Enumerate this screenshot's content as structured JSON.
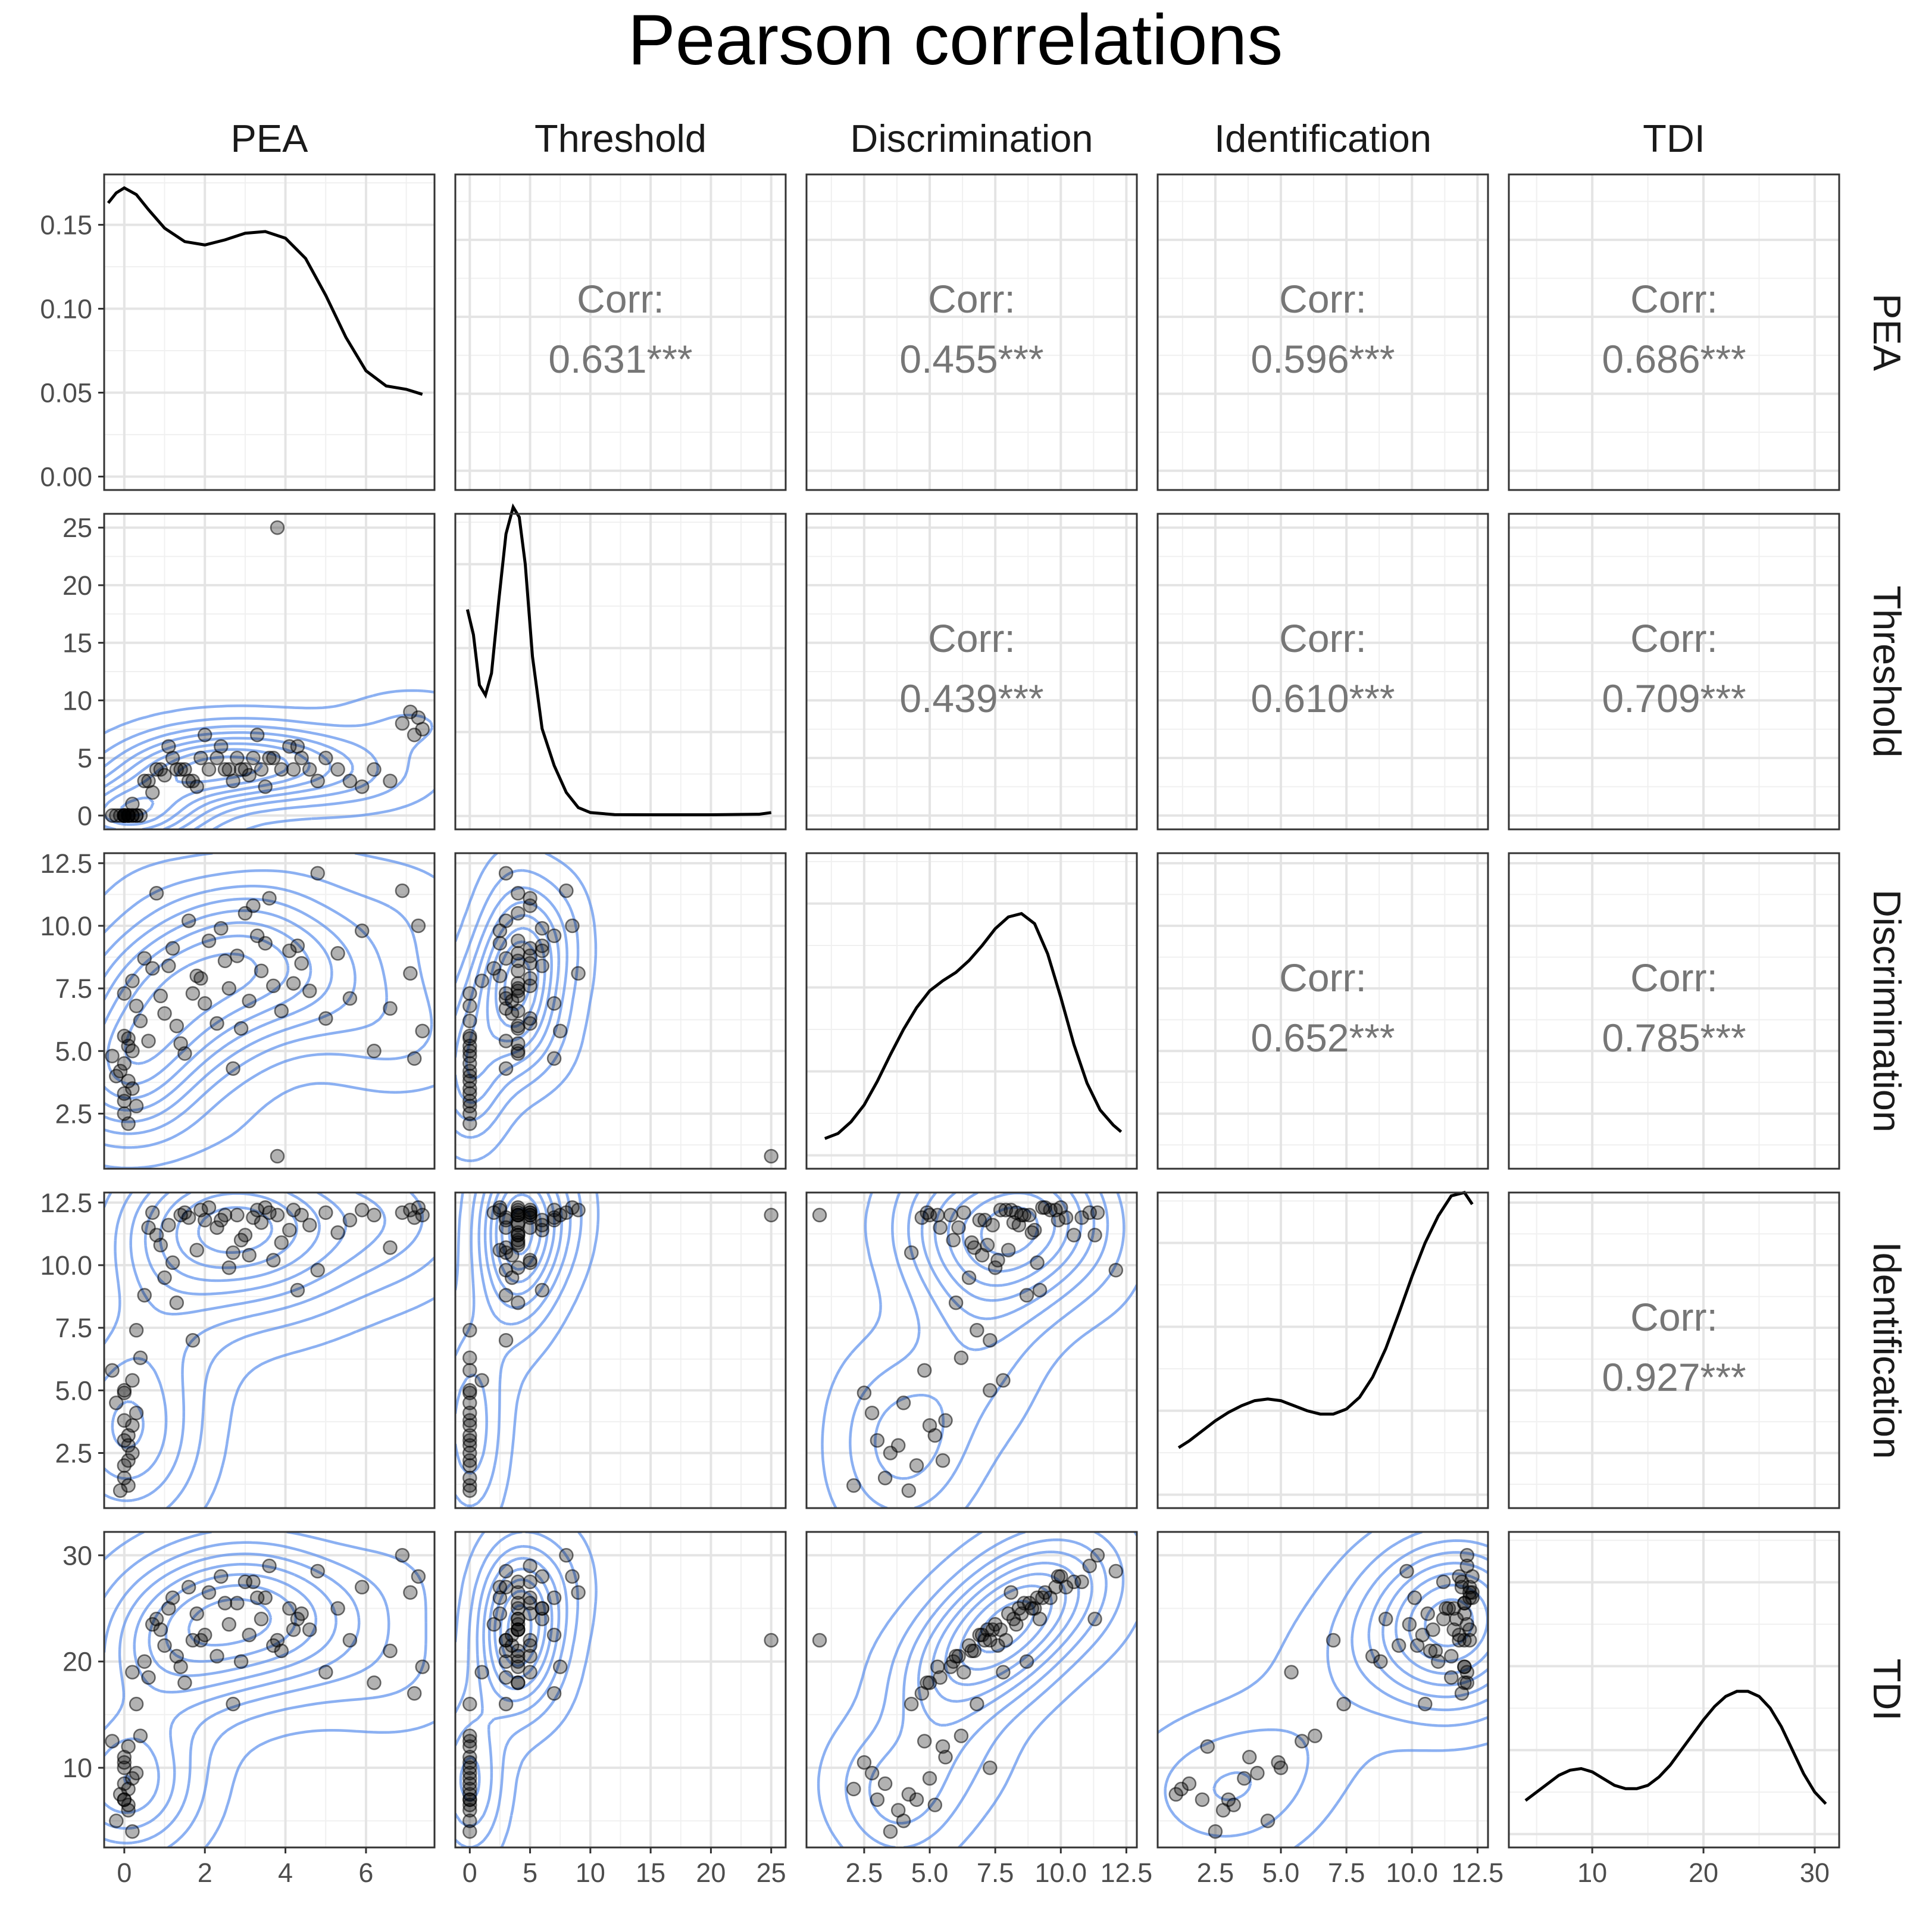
{
  "chart_data": {
    "type": "scatter-matrix",
    "title": "Pearson correlations",
    "variables": [
      "PEA",
      "Threshold",
      "Discrimination",
      "Identification",
      "TDI"
    ],
    "axes": {
      "PEA": {
        "range": [
          -0.5,
          7.7
        ],
        "ticks": [
          0,
          2,
          4,
          6
        ],
        "tick_labels": [
          "0",
          "2",
          "4",
          "6"
        ]
      },
      "Threshold": {
        "range": [
          -1.2,
          26.2
        ],
        "ticks": [
          0,
          5,
          10,
          15,
          20,
          25
        ],
        "tick_labels": [
          "0",
          "5",
          "10",
          "15",
          "20",
          "25"
        ]
      },
      "Discrimination": {
        "range": [
          0.3,
          12.9
        ],
        "ticks": [
          2.5,
          5,
          7.5,
          10,
          12.5
        ],
        "tick_labels": [
          "2.5",
          "5.0",
          "7.5",
          "10.0",
          "12.5"
        ]
      },
      "Identification": {
        "range": [
          0.3,
          12.9
        ],
        "ticks": [
          2.5,
          5,
          7.5,
          10,
          12.5
        ],
        "tick_labels": [
          "2.5",
          "5.0",
          "7.5",
          "10.0",
          "12.5"
        ]
      },
      "TDI": {
        "range": [
          2.5,
          32.2
        ],
        "ticks": [
          10,
          20,
          30
        ],
        "tick_labels": [
          "10",
          "20",
          "30"
        ]
      }
    },
    "diag_y_axis": {
      "range": [
        -0.008,
        0.18
      ],
      "ticks": [
        0,
        0.05,
        0.1,
        0.15
      ],
      "tick_labels": [
        "0.00",
        "0.05",
        "0.10",
        "0.15"
      ]
    },
    "correlations": [
      {
        "row": 0,
        "col": 1,
        "label": "Corr:",
        "value": "0.631***"
      },
      {
        "row": 0,
        "col": 2,
        "label": "Corr:",
        "value": "0.455***"
      },
      {
        "row": 0,
        "col": 3,
        "label": "Corr:",
        "value": "0.596***"
      },
      {
        "row": 0,
        "col": 4,
        "label": "Corr:",
        "value": "0.686***"
      },
      {
        "row": 1,
        "col": 2,
        "label": "Corr:",
        "value": "0.439***"
      },
      {
        "row": 1,
        "col": 3,
        "label": "Corr:",
        "value": "0.610***"
      },
      {
        "row": 1,
        "col": 4,
        "label": "Corr:",
        "value": "0.709***"
      },
      {
        "row": 2,
        "col": 3,
        "label": "Corr:",
        "value": "0.652***"
      },
      {
        "row": 2,
        "col": 4,
        "label": "Corr:",
        "value": "0.785***"
      },
      {
        "row": 3,
        "col": 4,
        "label": "Corr:",
        "value": "0.927***"
      }
    ],
    "densities": {
      "PEA": [
        [
          -0.4,
          0.163
        ],
        [
          -0.2,
          0.169
        ],
        [
          0,
          0.172
        ],
        [
          0.3,
          0.168
        ],
        [
          0.6,
          0.159
        ],
        [
          1,
          0.148
        ],
        [
          1.5,
          0.14
        ],
        [
          2,
          0.138
        ],
        [
          2.5,
          0.141
        ],
        [
          3,
          0.145
        ],
        [
          3.5,
          0.146
        ],
        [
          4,
          0.142
        ],
        [
          4.5,
          0.13
        ],
        [
          5,
          0.108
        ],
        [
          5.5,
          0.083
        ],
        [
          6,
          0.063
        ],
        [
          6.5,
          0.054
        ],
        [
          7,
          0.052
        ],
        [
          7.4,
          0.049
        ]
      ],
      "Threshold": [
        [
          -0.2,
          0.123
        ],
        [
          0.3,
          0.108
        ],
        [
          0.8,
          0.078
        ],
        [
          1.3,
          0.072
        ],
        [
          1.8,
          0.085
        ],
        [
          2.4,
          0.128
        ],
        [
          3,
          0.168
        ],
        [
          3.6,
          0.184
        ],
        [
          4.1,
          0.178
        ],
        [
          4.6,
          0.15
        ],
        [
          5.2,
          0.095
        ],
        [
          6,
          0.052
        ],
        [
          7,
          0.03
        ],
        [
          8,
          0.014
        ],
        [
          9,
          0.005
        ],
        [
          10,
          0.002
        ],
        [
          12,
          0.0008
        ],
        [
          15,
          0.0007
        ],
        [
          20,
          0.0007
        ],
        [
          24,
          0.001
        ],
        [
          25,
          0.002
        ]
      ],
      "Discrimination": [
        [
          1,
          0.01
        ],
        [
          1.5,
          0.013
        ],
        [
          2,
          0.02
        ],
        [
          2.5,
          0.03
        ],
        [
          3,
          0.044
        ],
        [
          3.5,
          0.06
        ],
        [
          4,
          0.075
        ],
        [
          4.5,
          0.088
        ],
        [
          5,
          0.098
        ],
        [
          5.5,
          0.104
        ],
        [
          6,
          0.109
        ],
        [
          6.5,
          0.116
        ],
        [
          7,
          0.125
        ],
        [
          7.5,
          0.135
        ],
        [
          8,
          0.142
        ],
        [
          8.5,
          0.144
        ],
        [
          9,
          0.138
        ],
        [
          9.5,
          0.12
        ],
        [
          10,
          0.094
        ],
        [
          10.5,
          0.066
        ],
        [
          11,
          0.043
        ],
        [
          11.5,
          0.027
        ],
        [
          12,
          0.018
        ],
        [
          12.3,
          0.014
        ]
      ],
      "Identification": [
        [
          1.1,
          0.028
        ],
        [
          1.5,
          0.032
        ],
        [
          2,
          0.038
        ],
        [
          2.5,
          0.044
        ],
        [
          3,
          0.049
        ],
        [
          3.5,
          0.053
        ],
        [
          4,
          0.056
        ],
        [
          4.5,
          0.057
        ],
        [
          5,
          0.056
        ],
        [
          5.5,
          0.053
        ],
        [
          6,
          0.05
        ],
        [
          6.5,
          0.048
        ],
        [
          7,
          0.048
        ],
        [
          7.5,
          0.051
        ],
        [
          8,
          0.058
        ],
        [
          8.5,
          0.07
        ],
        [
          9,
          0.087
        ],
        [
          9.5,
          0.108
        ],
        [
          10,
          0.13
        ],
        [
          10.5,
          0.15
        ],
        [
          11,
          0.166
        ],
        [
          11.5,
          0.178
        ],
        [
          12,
          0.18
        ],
        [
          12.3,
          0.173
        ]
      ],
      "TDI": [
        [
          4,
          0.02
        ],
        [
          5,
          0.025
        ],
        [
          6,
          0.03
        ],
        [
          7,
          0.035
        ],
        [
          8,
          0.038
        ],
        [
          9,
          0.039
        ],
        [
          10,
          0.037
        ],
        [
          11,
          0.033
        ],
        [
          12,
          0.029
        ],
        [
          13,
          0.027
        ],
        [
          14,
          0.027
        ],
        [
          15,
          0.029
        ],
        [
          16,
          0.034
        ],
        [
          17,
          0.041
        ],
        [
          18,
          0.05
        ],
        [
          19,
          0.059
        ],
        [
          20,
          0.068
        ],
        [
          21,
          0.076
        ],
        [
          22,
          0.082
        ],
        [
          23,
          0.085
        ],
        [
          24,
          0.085
        ],
        [
          25,
          0.082
        ],
        [
          26,
          0.075
        ],
        [
          27,
          0.064
        ],
        [
          28,
          0.05
        ],
        [
          29,
          0.036
        ],
        [
          30,
          0.025
        ],
        [
          31,
          0.018
        ]
      ]
    },
    "points": {
      "PEA": [
        0,
        0,
        0.1,
        0.3,
        0,
        -0.2,
        0.2,
        0,
        0.1,
        -0.3,
        0.4,
        0.1,
        0.2,
        0,
        -0.1,
        0.3,
        0.1,
        0,
        0.2,
        0.5,
        0.8,
        1.0,
        1.2,
        0.9,
        1.1,
        1.4,
        1.6,
        1.9,
        2.1,
        2.3,
        1.8,
        1.5,
        2.4,
        2.6,
        2.8,
        3.0,
        3.1,
        3.3,
        3.4,
        3.6,
        3.8,
        3.9,
        4.1,
        4.2,
        4.4,
        2.7,
        3.2,
        2.9,
        3.5,
        4.6,
        4.8,
        5.0,
        5.3,
        5.6,
        5.9,
        6.2,
        6.6,
        6.9,
        7.1,
        7.2,
        7.3,
        7.4,
        2.0,
        2.5,
        3.7,
        4.3,
        0.6,
        0.7,
        1.3,
        1.7
      ],
      "Threshold": [
        0,
        0,
        0,
        0,
        0,
        0,
        0,
        0,
        0,
        0,
        0,
        0,
        0,
        0,
        0,
        0,
        0,
        0,
        1,
        3,
        4,
        3.5,
        5,
        4,
        6,
        4,
        3,
        5,
        4,
        5,
        2.5,
        4,
        6,
        4,
        5,
        4,
        3.5,
        7,
        4,
        5,
        25,
        4,
        6,
        4,
        5,
        3,
        5,
        4,
        2.5,
        4,
        3,
        5,
        4,
        3,
        2.5,
        4,
        3,
        8,
        9,
        7,
        8.5,
        7.5,
        7,
        4,
        5,
        6,
        3,
        2,
        4,
        3
      ],
      "Discrimination": [
        4.5,
        3.3,
        5.2,
        2.8,
        7.3,
        4.0,
        3.5,
        5.6,
        2.1,
        4.8,
        6.2,
        3.8,
        5.0,
        2.5,
        4.2,
        6.8,
        5.5,
        3.0,
        7.8,
        8.7,
        11.3,
        6.5,
        9.1,
        7.2,
        8.4,
        5.3,
        10.2,
        7.9,
        9.4,
        6.1,
        8.0,
        4.9,
        9.9,
        7.5,
        8.8,
        10.5,
        7.0,
        9.6,
        8.2,
        11.1,
        0.8,
        6.6,
        9.0,
        7.7,
        8.5,
        4.3,
        10.8,
        5.9,
        9.3,
        7.4,
        12.1,
        6.3,
        8.9,
        7.1,
        9.8,
        5.0,
        6.7,
        11.4,
        8.1,
        4.7,
        10.0,
        5.8,
        6.9,
        8.6,
        7.6,
        9.2,
        5.4,
        8.3,
        6.0,
        7.3
      ],
      "Identification": [
        2.0,
        1.5,
        3.2,
        4.1,
        5.0,
        4.5,
        2.5,
        3.8,
        1.2,
        5.8,
        6.3,
        2.8,
        3.6,
        4.9,
        1.0,
        7.4,
        2.2,
        3.0,
        5.4,
        8.8,
        11.2,
        9.5,
        10.1,
        10.8,
        11.6,
        12.0,
        11.9,
        12.2,
        12.3,
        11.5,
        10.6,
        12.1,
        11.8,
        9.9,
        12.0,
        11.2,
        10.4,
        12.2,
        11.7,
        12.1,
        12.0,
        10.9,
        11.4,
        12.2,
        12.0,
        10.5,
        11.9,
        11.0,
        12.3,
        11.6,
        9.8,
        12.1,
        11.3,
        11.8,
        12.2,
        12.0,
        10.7,
        12.1,
        12.2,
        11.9,
        12.3,
        12.0,
        11.8,
        12.0,
        10.2,
        9.0,
        11.5,
        12.1,
        8.5,
        7.0
      ],
      "TDI": [
        7.0,
        8.5,
        6.5,
        9.5,
        10.0,
        5.0,
        4.0,
        11.0,
        8.0,
        12.5,
        13.0,
        6.0,
        9.0,
        10.5,
        7.5,
        16.0,
        12.0,
        7.0,
        19.0,
        20.0,
        24.0,
        21.5,
        26.0,
        23.0,
        25.0,
        19.5,
        27.0,
        22.0,
        26.5,
        20.5,
        24.5,
        18.0,
        28.0,
        23.5,
        25.5,
        27.5,
        22.5,
        26.0,
        24.0,
        29.0,
        22.0,
        21.0,
        25.0,
        23.0,
        24.5,
        16.0,
        27.5,
        20.0,
        26.0,
        23.0,
        28.5,
        19.0,
        25.0,
        22.0,
        27.0,
        18.0,
        21.0,
        30.0,
        26.5,
        17.0,
        28.0,
        19.5,
        22.5,
        25.5,
        21.5,
        24.0,
        18.5,
        23.5,
        20.5,
        22.0
      ]
    }
  }
}
